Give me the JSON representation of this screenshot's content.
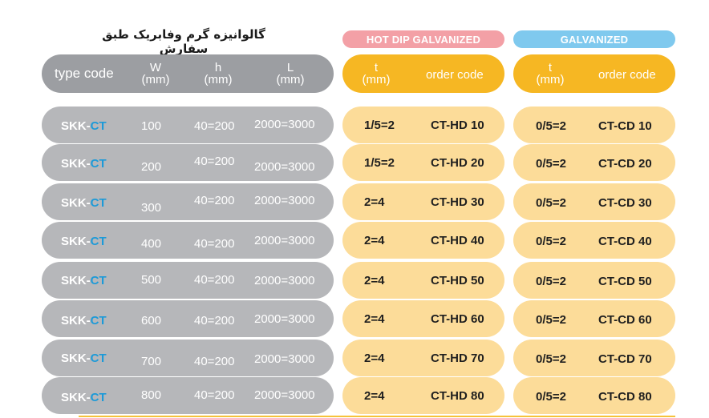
{
  "title": "گالوانیزه گرم وفابریک طبق سفارش",
  "badges": {
    "hot_dip": "HOT DIP GALVANIZED",
    "galvanized": "GALVANIZED"
  },
  "header": {
    "type_code": "type code",
    "w": "W",
    "w_unit": "(mm)",
    "h": "h",
    "h_unit": "(mm)",
    "l": "L",
    "l_unit": "(mm)",
    "t1": "t",
    "t1_unit": "(mm)",
    "order1": "order code",
    "t2": "t",
    "t2_unit": "(mm)",
    "order2": "order code"
  },
  "rows": [
    {
      "prefix": "SKK-",
      "suffix": "CT",
      "w": "100",
      "h": "40=200",
      "l": "2000=3000",
      "hd_t": "1/5=2",
      "hd_code": "CT-HD 10",
      "cd_t": "0/5=2",
      "cd_code": "CT-CD 10"
    },
    {
      "prefix": "SKK-",
      "suffix": "CT",
      "w": "200",
      "h": "40=200",
      "l": "2000=3000",
      "hd_t": "1/5=2",
      "hd_code": "CT-HD 20",
      "cd_t": "0/5=2",
      "cd_code": "CT-CD 20"
    },
    {
      "prefix": "SKK-",
      "suffix": "CT",
      "w": "300",
      "h": "40=200",
      "l": "2000=3000",
      "hd_t": "2=4",
      "hd_code": "CT-HD 30",
      "cd_t": "0/5=2",
      "cd_code": "CT-CD 30"
    },
    {
      "prefix": "SKK-",
      "suffix": "CT",
      "w": "400",
      "h": "40=200",
      "l": "2000=3000",
      "hd_t": "2=4",
      "hd_code": "CT-HD 40",
      "cd_t": "0/5=2",
      "cd_code": "CT-CD 40"
    },
    {
      "prefix": "SKK-",
      "suffix": "CT",
      "w": "500",
      "h": "40=200",
      "l": "2000=3000",
      "hd_t": "2=4",
      "hd_code": "CT-HD 50",
      "cd_t": "0/5=2",
      "cd_code": "CT-CD 50"
    },
    {
      "prefix": "SKK-",
      "suffix": "CT",
      "w": "600",
      "h": "40=200",
      "l": "2000=3000",
      "hd_t": "2=4",
      "hd_code": "CT-HD 60",
      "cd_t": "0/5=2",
      "cd_code": "CT-CD 60"
    },
    {
      "prefix": "SKK-",
      "suffix": "CT",
      "w": "700",
      "h": "40=200",
      "l": "2000=3000",
      "hd_t": "2=4",
      "hd_code": "CT-HD 70",
      "cd_t": "0/5=2",
      "cd_code": "CT-CD 70"
    },
    {
      "prefix": "SKK-",
      "suffix": "CT",
      "w": "800",
      "h": "40=200",
      "l": "2000=3000",
      "hd_t": "2=4",
      "hd_code": "CT-HD 80",
      "cd_t": "0/5=2",
      "cd_code": "CT-CD 80"
    }
  ],
  "colors": {
    "grey_header": "#9c9ea2",
    "grey_row": "#b6b7ba",
    "yellow_header": "#f6b723",
    "yellow_row": "#fcdc99",
    "hot_dip_badge": "#f3a0a6",
    "galvanized_badge": "#7fc9ee",
    "ct_accent": "#1c9ad8"
  }
}
